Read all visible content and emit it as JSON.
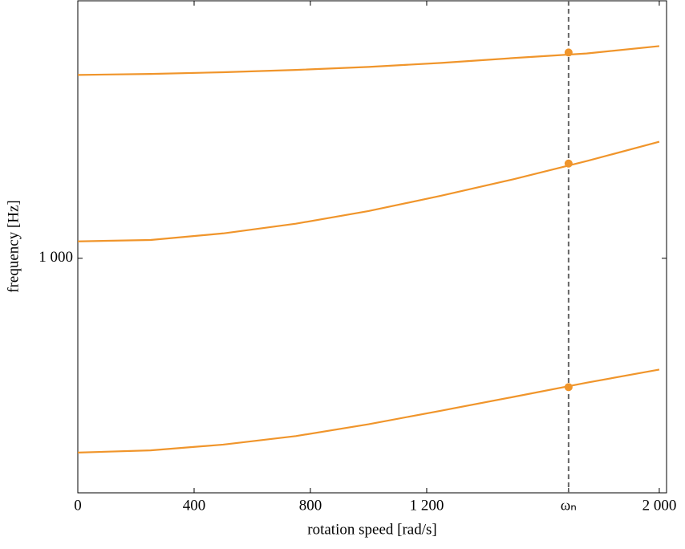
{
  "chart_data": {
    "type": "line",
    "xlabel": "rotation speed [rad/s]",
    "ylabel": "frequency [Hz]",
    "x": [
      0,
      250,
      500,
      750,
      1000,
      1250,
      1500,
      1750,
      2000
    ],
    "series": [
      {
        "color": "#f0952b",
        "values": [
          673,
          676,
          684,
          696,
          713,
          733,
          754,
          776,
          797
        ]
      },
      {
        "color": "#f0952b",
        "values": [
          1035,
          1038,
          1052,
          1073,
          1101,
          1136,
          1175,
          1219,
          1268
        ]
      },
      {
        "color": "#f0952b",
        "values": [
          1453,
          1456,
          1461,
          1468,
          1477,
          1489,
          1504,
          1518,
          1541
        ]
      }
    ],
    "marker_values": [
      769,
      1213,
      1521
    ],
    "xlim": [
      0,
      2025
    ],
    "ylim": [
      620,
      1690
    ],
    "log_y": true,
    "xticks": [
      0,
      400,
      800,
      {
        "value": 1200,
        "label": "1 200"
      },
      {
        "value": 1688,
        "label": "ωₙ"
      },
      {
        "value": 2000,
        "label": "2 000"
      }
    ],
    "yticks": [
      {
        "value": 1000,
        "label": "1 000"
      }
    ]
  }
}
